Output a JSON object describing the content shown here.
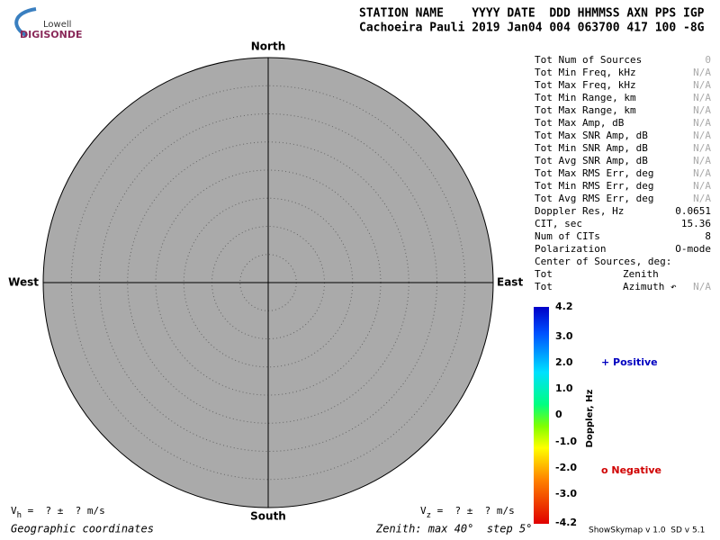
{
  "logo": {
    "top": "Lowell",
    "bottom": "DIGISONDE"
  },
  "header": {
    "columns": "STATION NAME    YYYY DATE  DDD HHMMSS AXN PPS IGP",
    "values": "Cachoeira Pauli 2019 Jan04 004 063700 417 100 -8G"
  },
  "directions": {
    "north": "North",
    "south": "South",
    "east": "East",
    "west": "West"
  },
  "stats": [
    {
      "label": "Tot Num of Sources",
      "value": "0"
    },
    {
      "label": "Tot Min Freq, kHz",
      "value": "N/A"
    },
    {
      "label": "Tot Max Freq, kHz",
      "value": "N/A"
    },
    {
      "label": "Tot Min Range, km",
      "value": "N/A"
    },
    {
      "label": "Tot Max Range, km",
      "value": "N/A"
    },
    {
      "label": "Tot Max Amp, dB",
      "value": "N/A"
    },
    {
      "label": "Tot Max SNR Amp, dB",
      "value": "N/A"
    },
    {
      "label": "Tot Min SNR Amp, dB",
      "value": "N/A"
    },
    {
      "label": "Tot Avg SNR Amp, dB",
      "value": "N/A"
    },
    {
      "label": "Tot Max RMS Err, deg",
      "value": "N/A"
    },
    {
      "label": "Tot Min RMS Err, deg",
      "value": "N/A"
    },
    {
      "label": "Tot Avg RMS Err, deg",
      "value": "N/A"
    },
    {
      "label": "Doppler Res, Hz",
      "value": "0.0651"
    },
    {
      "label": "CIT, sec",
      "value": "15.36"
    },
    {
      "label": "Num of CITs",
      "value": "8"
    },
    {
      "label": "Polarization",
      "value": "O-mode"
    }
  ],
  "center": {
    "title": "Center of Sources, deg:",
    "rows": [
      {
        "label": "Tot",
        "name": "Zenith"
      },
      {
        "label": "Tot",
        "name": "Azimuth ↶",
        "value": "N/A"
      }
    ]
  },
  "colorbar": {
    "title": "Doppler, Hz",
    "ticks": [
      "4.2",
      "3.0",
      "2.0",
      "1.0",
      "0",
      "-1.0",
      "-2.0",
      "-3.0",
      "-4.2"
    ]
  },
  "legend": {
    "positive": "+ Positive",
    "negative": "o Negative"
  },
  "footer": {
    "vh": {
      "symbol": "V",
      "subscript": "h",
      "text": " =  ? ±  ? m/s"
    },
    "vz": {
      "symbol": "V",
      "subscript": "z",
      "text": " =  ? ±  ? m/s"
    },
    "coordinates": "Geographic coordinates",
    "zenith": "Zenith: max 40°  step 5°",
    "version": "ShowSkymap v 1.0  SD v 5.1"
  }
}
